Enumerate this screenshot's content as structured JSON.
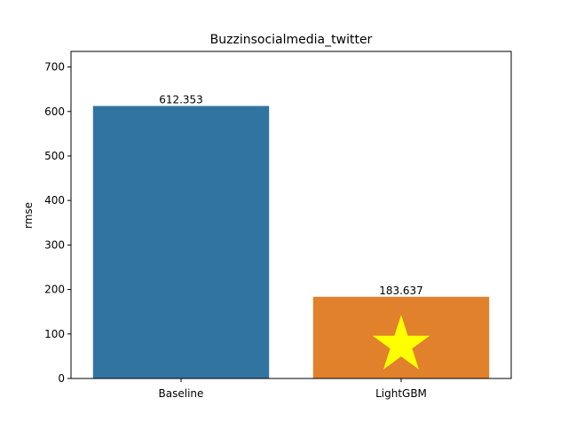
{
  "chart_data": {
    "type": "bar",
    "title": "Buzzinsocialmedia_twitter",
    "xlabel": "",
    "ylabel": "rmse",
    "categories": [
      "Baseline",
      "LightGBM"
    ],
    "values": [
      612.353,
      183.637
    ],
    "value_labels": [
      "612.353",
      "183.637"
    ],
    "colors": [
      "#3274a1",
      "#e1812c"
    ],
    "ylim": [
      0,
      735
    ],
    "yticks": [
      0,
      100,
      200,
      300,
      400,
      500,
      600,
      700
    ],
    "highlight": {
      "category": "LightGBM",
      "marker": "star",
      "color": "#ffff00"
    },
    "grid": false,
    "legend": "none"
  }
}
